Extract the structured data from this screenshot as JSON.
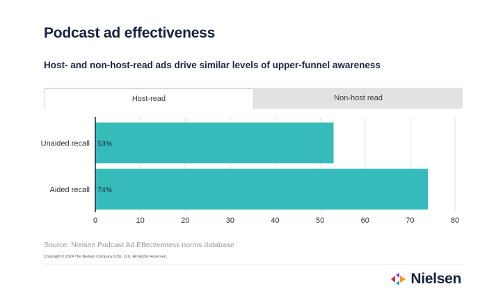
{
  "header": {
    "title": "Podcast ad effectiveness",
    "subtitle": "Host- and non-host-read ads drive similar levels of upper-funnel awareness"
  },
  "tabs": [
    {
      "label": "Host-read",
      "active": true
    },
    {
      "label": "Non-host read",
      "active": false
    }
  ],
  "chart_data": {
    "type": "bar",
    "orientation": "horizontal",
    "categories": [
      "Unaided recall",
      "Aided recall"
    ],
    "values": [
      53,
      74
    ],
    "value_labels": [
      "53%",
      "74%"
    ],
    "xlim": [
      0,
      80
    ],
    "xticks": [
      0,
      10,
      20,
      30,
      40,
      50,
      60,
      70,
      80
    ],
    "bar_color": "#35bcba",
    "grid": true,
    "title": "",
    "xlabel": "",
    "ylabel": ""
  },
  "footer": {
    "source": "Source: Nielsen Podcast Ad Effectiveness norms database",
    "copyright": "Copyright © 2024 The Nielsen Company (US), LLC. All Rights Reserved.",
    "brand": "Nielsen"
  },
  "colors": {
    "bar": "#35bcba",
    "title": "#16213e",
    "grid": "#e2e2e2",
    "axis": "#1a2240"
  }
}
